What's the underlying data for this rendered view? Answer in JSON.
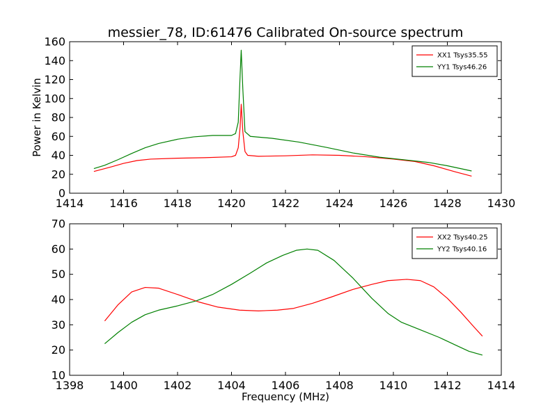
{
  "figure": {
    "title": "messier_78, ID:61476 Calibrated On-source spectrum",
    "xlabel": "Frequency (MHz)"
  },
  "chart_data": [
    {
      "type": "line",
      "title": "messier_78, ID:61476 Calibrated On-source spectrum",
      "xlabel": "",
      "ylabel": "Power in Kelvin",
      "xlim": [
        1414,
        1430
      ],
      "ylim": [
        0,
        160
      ],
      "xticks": [
        1414,
        1416,
        1418,
        1420,
        1422,
        1424,
        1426,
        1428,
        1430
      ],
      "yticks": [
        0,
        20,
        40,
        60,
        80,
        100,
        120,
        140,
        160
      ],
      "legend": "top-right",
      "series": [
        {
          "name": "XX1 Tsys35.55",
          "color": "#ff0000",
          "points": [
            [
              1414.9,
              23
            ],
            [
              1415.5,
              27.5
            ],
            [
              1416,
              31.5
            ],
            [
              1416.5,
              34.5
            ],
            [
              1417,
              36
            ],
            [
              1418,
              37
            ],
            [
              1419,
              37.5
            ],
            [
              1420,
              38.5
            ],
            [
              1420.15,
              40
            ],
            [
              1420.25,
              48
            ],
            [
              1420.32,
              70
            ],
            [
              1420.36,
              94
            ],
            [
              1420.42,
              65
            ],
            [
              1420.5,
              44
            ],
            [
              1420.6,
              40
            ],
            [
              1421,
              39
            ],
            [
              1422,
              39.5
            ],
            [
              1423,
              40.5
            ],
            [
              1424,
              40
            ],
            [
              1425,
              38.5
            ],
            [
              1426,
              36
            ],
            [
              1426.8,
              33.5
            ],
            [
              1427.5,
              29
            ],
            [
              1428.3,
              22.5
            ],
            [
              1428.9,
              18
            ]
          ]
        },
        {
          "name": "YY1 Tsys46.26",
          "color": "#008000",
          "points": [
            [
              1414.9,
              26
            ],
            [
              1415.3,
              29.5
            ],
            [
              1415.8,
              35.5
            ],
            [
              1416.3,
              42
            ],
            [
              1416.8,
              48
            ],
            [
              1417.3,
              52.5
            ],
            [
              1418,
              57
            ],
            [
              1418.6,
              59.5
            ],
            [
              1419.3,
              61
            ],
            [
              1420,
              61
            ],
            [
              1420.15,
              63
            ],
            [
              1420.25,
              75
            ],
            [
              1420.32,
              125
            ],
            [
              1420.36,
              151
            ],
            [
              1420.42,
              110
            ],
            [
              1420.5,
              65
            ],
            [
              1420.7,
              60
            ],
            [
              1421.5,
              58
            ],
            [
              1422.5,
              54
            ],
            [
              1423.5,
              48.5
            ],
            [
              1424.5,
              42.5
            ],
            [
              1425.5,
              38
            ],
            [
              1426.5,
              35
            ],
            [
              1427.3,
              32.5
            ],
            [
              1428,
              29
            ],
            [
              1428.9,
              23.5
            ]
          ]
        }
      ]
    },
    {
      "type": "line",
      "xlabel": "Frequency (MHz)",
      "ylabel": "",
      "xlim": [
        1398,
        1414
      ],
      "ylim": [
        10,
        70
      ],
      "xticks": [
        1398,
        1400,
        1402,
        1404,
        1406,
        1408,
        1410,
        1412,
        1414
      ],
      "yticks": [
        10,
        20,
        30,
        40,
        50,
        60,
        70
      ],
      "legend": "top-right",
      "series": [
        {
          "name": "XX2 Tsys40.25",
          "color": "#ff0000",
          "points": [
            [
              1399.3,
              31.5
            ],
            [
              1399.8,
              38
            ],
            [
              1400.3,
              43
            ],
            [
              1400.8,
              44.8
            ],
            [
              1401.3,
              44.5
            ],
            [
              1402,
              42
            ],
            [
              1402.8,
              39
            ],
            [
              1403.5,
              37
            ],
            [
              1404.3,
              35.8
            ],
            [
              1405,
              35.5
            ],
            [
              1405.7,
              35.8
            ],
            [
              1406.3,
              36.5
            ],
            [
              1407,
              38.5
            ],
            [
              1407.7,
              41
            ],
            [
              1408.5,
              44
            ],
            [
              1409.2,
              46
            ],
            [
              1409.8,
              47.5
            ],
            [
              1410.5,
              48
            ],
            [
              1411,
              47.5
            ],
            [
              1411.5,
              45
            ],
            [
              1412,
              40.5
            ],
            [
              1412.5,
              35
            ],
            [
              1413,
              29
            ],
            [
              1413.3,
              25.5
            ]
          ]
        },
        {
          "name": "YY2 Tsys40.16",
          "color": "#008000",
          "points": [
            [
              1399.3,
              22.5
            ],
            [
              1399.8,
              27
            ],
            [
              1400.3,
              31
            ],
            [
              1400.8,
              34
            ],
            [
              1401.3,
              35.8
            ],
            [
              1402,
              37.5
            ],
            [
              1402.7,
              39.5
            ],
            [
              1403.3,
              42
            ],
            [
              1404,
              46
            ],
            [
              1404.7,
              50.5
            ],
            [
              1405.3,
              54.5
            ],
            [
              1405.9,
              57.5
            ],
            [
              1406.4,
              59.5
            ],
            [
              1406.8,
              60
            ],
            [
              1407.2,
              59.5
            ],
            [
              1407.8,
              55.5
            ],
            [
              1408.5,
              48.5
            ],
            [
              1409.2,
              40.5
            ],
            [
              1409.8,
              34.5
            ],
            [
              1410.3,
              31
            ],
            [
              1411,
              28
            ],
            [
              1411.7,
              25
            ],
            [
              1412.3,
              22
            ],
            [
              1412.8,
              19.5
            ],
            [
              1413.3,
              18
            ]
          ]
        }
      ]
    }
  ]
}
